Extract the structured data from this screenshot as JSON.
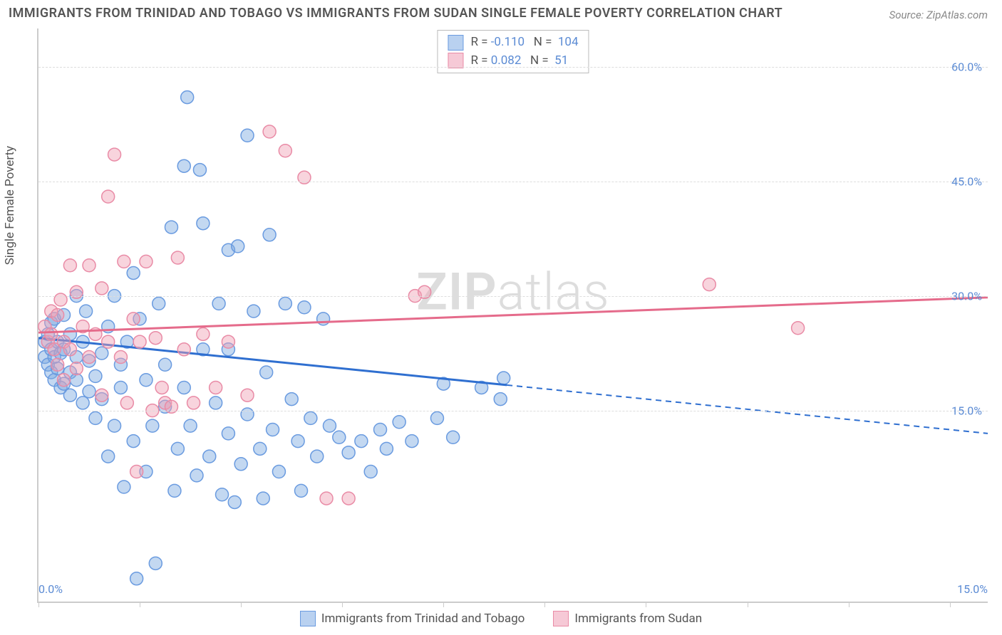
{
  "title": "IMMIGRANTS FROM TRINIDAD AND TOBAGO VS IMMIGRANTS FROM SUDAN SINGLE FEMALE POVERTY CORRELATION CHART",
  "source_label": "Source:",
  "source_value": "ZipAtlas.com",
  "ylabel": "Single Female Poverty",
  "watermark_left": "ZIP",
  "watermark_right": "atlas",
  "chart": {
    "type": "scatter",
    "xlim": [
      0,
      15
    ],
    "ylim": [
      -10,
      65
    ],
    "ytick_values": [
      15,
      30,
      45,
      60
    ],
    "ytick_labels": [
      "15.0%",
      "30.0%",
      "45.0%",
      "60.0%"
    ],
    "xtick_positions": [
      0,
      1.6,
      3.2,
      4.8,
      6.4,
      8.0,
      9.6,
      11.2,
      12.8,
      14.4
    ],
    "xtick_labels_left": "0.0%",
    "xtick_labels_right": "15.0%",
    "grid_color": "#dddddd",
    "axis_color": "#cccccc",
    "background": "#ffffff",
    "series": [
      {
        "name": "Immigrants from Trinidad and Tobago",
        "color_fill": "rgba(122,168,225,0.45)",
        "color_stroke": "#6a9be0",
        "line_color": "#2f6fd0",
        "swatch_fill": "#b9d1f0",
        "swatch_border": "#6a9be0",
        "R": "-0.110",
        "N": "104",
        "trend": {
          "x1": 0,
          "y1": 24.5,
          "x2": 15,
          "y2": 12.0,
          "solid_until_x": 7.4
        },
        "points": [
          [
            0.1,
            22
          ],
          [
            0.1,
            24
          ],
          [
            0.15,
            21
          ],
          [
            0.15,
            25
          ],
          [
            0.2,
            20
          ],
          [
            0.2,
            23
          ],
          [
            0.2,
            26.5
          ],
          [
            0.25,
            19
          ],
          [
            0.25,
            22
          ],
          [
            0.25,
            27
          ],
          [
            0.3,
            20.5
          ],
          [
            0.3,
            24
          ],
          [
            0.35,
            18
          ],
          [
            0.35,
            22.5
          ],
          [
            0.4,
            23
          ],
          [
            0.4,
            27.5
          ],
          [
            0.4,
            18.5
          ],
          [
            0.5,
            17
          ],
          [
            0.5,
            25
          ],
          [
            0.5,
            20
          ],
          [
            0.6,
            30
          ],
          [
            0.6,
            19
          ],
          [
            0.6,
            22
          ],
          [
            0.7,
            16
          ],
          [
            0.7,
            24
          ],
          [
            0.75,
            28
          ],
          [
            0.8,
            21.5
          ],
          [
            0.8,
            17.5
          ],
          [
            0.9,
            19.5
          ],
          [
            0.9,
            14
          ],
          [
            1.0,
            16.5
          ],
          [
            1.0,
            22.5
          ],
          [
            1.1,
            9
          ],
          [
            1.1,
            26
          ],
          [
            1.2,
            30
          ],
          [
            1.2,
            13
          ],
          [
            1.3,
            21
          ],
          [
            1.3,
            18
          ],
          [
            1.35,
            5
          ],
          [
            1.4,
            24
          ],
          [
            1.5,
            33
          ],
          [
            1.5,
            11
          ],
          [
            1.55,
            -7
          ],
          [
            1.6,
            27
          ],
          [
            1.7,
            7
          ],
          [
            1.7,
            19
          ],
          [
            1.8,
            13
          ],
          [
            1.85,
            -5
          ],
          [
            1.9,
            29
          ],
          [
            2.0,
            15.5
          ],
          [
            2.0,
            21
          ],
          [
            2.1,
            39
          ],
          [
            2.15,
            4.5
          ],
          [
            2.2,
            10
          ],
          [
            2.3,
            47
          ],
          [
            2.3,
            18
          ],
          [
            2.35,
            56
          ],
          [
            2.4,
            13
          ],
          [
            2.5,
            6.5
          ],
          [
            2.55,
            46.5
          ],
          [
            2.6,
            39.5
          ],
          [
            2.6,
            23
          ],
          [
            2.7,
            9
          ],
          [
            2.8,
            16
          ],
          [
            2.85,
            29
          ],
          [
            2.9,
            4
          ],
          [
            3.0,
            36
          ],
          [
            3.0,
            12
          ],
          [
            3.0,
            23
          ],
          [
            3.1,
            3
          ],
          [
            3.15,
            36.5
          ],
          [
            3.2,
            8
          ],
          [
            3.3,
            51
          ],
          [
            3.3,
            14.5
          ],
          [
            3.4,
            28
          ],
          [
            3.5,
            10
          ],
          [
            3.55,
            3.5
          ],
          [
            3.6,
            20
          ],
          [
            3.65,
            38
          ],
          [
            3.7,
            12.5
          ],
          [
            3.8,
            7
          ],
          [
            3.9,
            29
          ],
          [
            4.0,
            16.5
          ],
          [
            4.1,
            11
          ],
          [
            4.15,
            4.5
          ],
          [
            4.2,
            28.5
          ],
          [
            4.3,
            14
          ],
          [
            4.4,
            9
          ],
          [
            4.5,
            27
          ],
          [
            4.6,
            13
          ],
          [
            4.75,
            11.5
          ],
          [
            4.9,
            9.5
          ],
          [
            5.1,
            11
          ],
          [
            5.25,
            7
          ],
          [
            5.4,
            12.5
          ],
          [
            5.5,
            10
          ],
          [
            5.7,
            13.5
          ],
          [
            5.9,
            11
          ],
          [
            6.3,
            14
          ],
          [
            6.4,
            18.5
          ],
          [
            6.55,
            11.5
          ],
          [
            7.0,
            18
          ],
          [
            7.3,
            16.5
          ],
          [
            7.35,
            19.25
          ]
        ]
      },
      {
        "name": "Immigrants from Sudan",
        "color_fill": "rgba(240,160,180,0.45)",
        "color_stroke": "#e98ba6",
        "line_color": "#e56b8b",
        "swatch_fill": "#f6c9d6",
        "swatch_border": "#e98ba6",
        "R": "0.082",
        "N": "51",
        "trend": {
          "x1": 0,
          "y1": 25.2,
          "x2": 15,
          "y2": 29.8,
          "solid_until_x": 15
        },
        "points": [
          [
            0.1,
            26
          ],
          [
            0.15,
            24
          ],
          [
            0.2,
            28
          ],
          [
            0.2,
            25
          ],
          [
            0.25,
            23
          ],
          [
            0.3,
            27.5
          ],
          [
            0.3,
            21
          ],
          [
            0.35,
            29.5
          ],
          [
            0.4,
            24
          ],
          [
            0.4,
            19
          ],
          [
            0.5,
            23
          ],
          [
            0.5,
            34
          ],
          [
            0.6,
            20.5
          ],
          [
            0.7,
            26
          ],
          [
            0.8,
            34
          ],
          [
            0.8,
            22
          ],
          [
            0.9,
            25
          ],
          [
            1.0,
            17
          ],
          [
            1.1,
            24
          ],
          [
            1.1,
            43
          ],
          [
            1.2,
            48.5
          ],
          [
            1.3,
            22
          ],
          [
            1.35,
            34.5
          ],
          [
            1.4,
            16
          ],
          [
            1.5,
            27
          ],
          [
            1.55,
            7
          ],
          [
            1.6,
            24
          ],
          [
            1.7,
            34.5
          ],
          [
            1.8,
            15
          ],
          [
            1.85,
            24.5
          ],
          [
            1.95,
            18
          ],
          [
            2.0,
            16
          ],
          [
            2.1,
            15.5
          ],
          [
            2.2,
            35
          ],
          [
            2.3,
            23
          ],
          [
            2.45,
            16
          ],
          [
            2.6,
            25
          ],
          [
            2.8,
            18
          ],
          [
            3.0,
            24
          ],
          [
            3.3,
            17
          ],
          [
            3.65,
            51.5
          ],
          [
            3.9,
            49
          ],
          [
            4.2,
            45.5
          ],
          [
            4.55,
            3.5
          ],
          [
            4.9,
            3.5
          ],
          [
            5.95,
            30
          ],
          [
            6.1,
            30.5
          ],
          [
            10.6,
            31.5
          ],
          [
            12.0,
            25.8
          ],
          [
            1.0,
            31
          ],
          [
            0.6,
            30.5
          ]
        ]
      }
    ]
  },
  "bottom_legend": [
    {
      "label": "Immigrants from Trinidad and Tobago",
      "series": 0
    },
    {
      "label": "Immigrants from Sudan",
      "series": 1
    }
  ]
}
